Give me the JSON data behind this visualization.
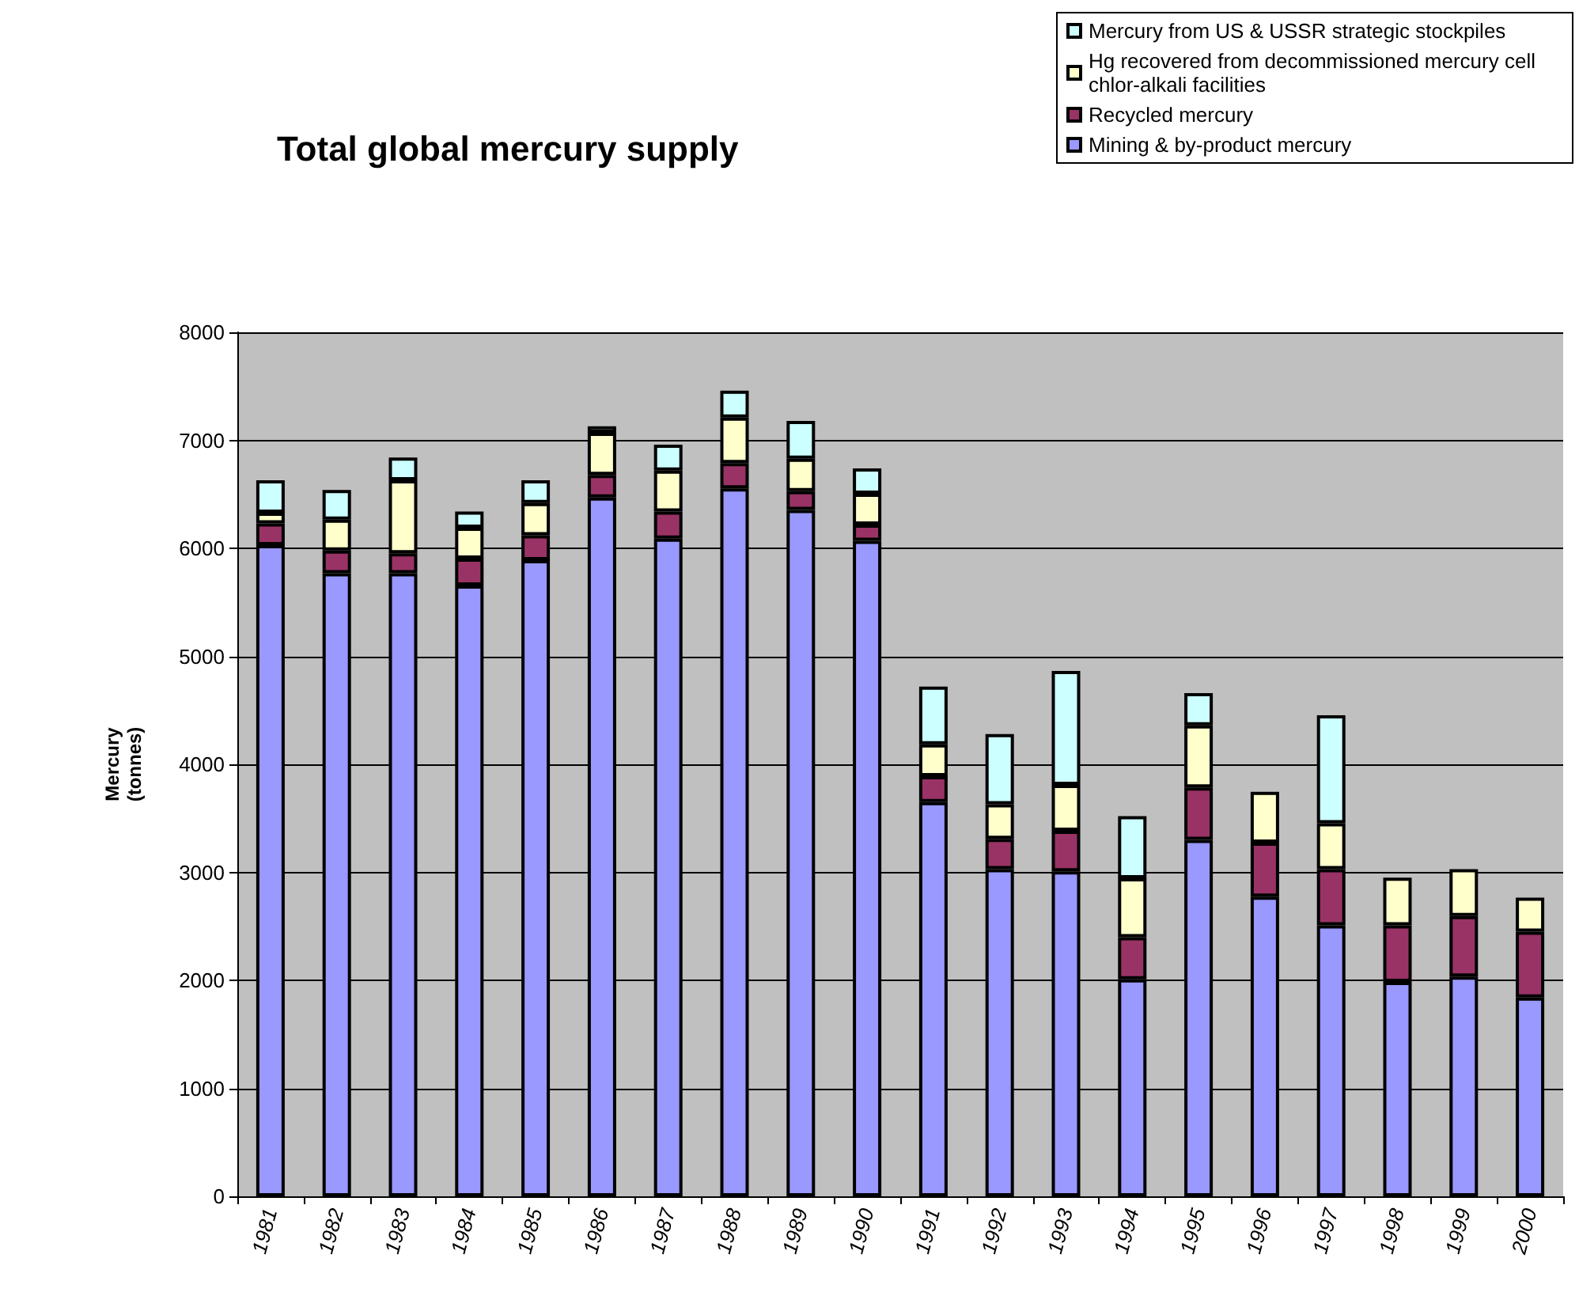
{
  "chart_data": {
    "type": "bar",
    "title": "Total global mercury supply",
    "ylabel": "Mercury\n(tonnes)",
    "stacked": true,
    "grid": "y",
    "legend": "top right",
    "categories": [
      "1981",
      "1982",
      "1983",
      "1984",
      "1985",
      "1986",
      "1987",
      "1988",
      "1989",
      "1990",
      "1991",
      "1992",
      "1993",
      "1994",
      "1995",
      "1996",
      "1997",
      "1998",
      "1999",
      "2000"
    ],
    "ylim": [
      0,
      8000
    ],
    "yticks": [
      0,
      1000,
      2000,
      3000,
      4000,
      5000,
      6000,
      7000,
      8000
    ],
    "series": [
      {
        "name": "Mining & by-product mercury",
        "color": "#9999ff",
        "values": [
          6030,
          5770,
          5770,
          5655,
          5890,
          6470,
          6090,
          6555,
          6355,
          6070,
          3650,
          3030,
          3010,
          2010,
          3300,
          2775,
          2510,
          1985,
          2035,
          1840
        ]
      },
      {
        "name": "Recycled mercury",
        "color": "#993366",
        "values": [
          200,
          210,
          185,
          250,
          230,
          210,
          250,
          235,
          175,
          150,
          240,
          280,
          375,
          390,
          485,
          500,
          520,
          525,
          560,
          610
        ]
      },
      {
        "name": "Hg recovered from decommissioned mercury cell chlor-alkali facilities",
        "color": "#ffffcc",
        "values": [
          100,
          285,
          675,
          285,
          300,
          390,
          380,
          420,
          300,
          285,
          295,
          320,
          425,
          545,
          575,
          470,
          425,
          440,
          435,
          315
        ]
      },
      {
        "name": "Mercury from US & USSR strategic stockpiles",
        "color": "#ccffff",
        "values": [
          300,
          275,
          210,
          150,
          210,
          60,
          240,
          250,
          350,
          235,
          535,
          650,
          1055,
          575,
          300,
          null,
          1000,
          null,
          null,
          null
        ]
      }
    ]
  }
}
